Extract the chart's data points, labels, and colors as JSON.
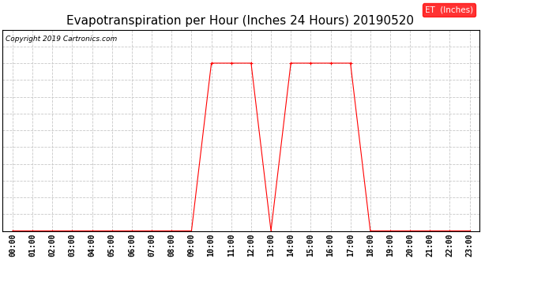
{
  "title": "Evapotranspiration per Hour (Inches 24 Hours) 20190520",
  "copyright": "Copyright 2019 Cartronics.com",
  "legend_label": "ET  (Inches)",
  "legend_bg": "#ff0000",
  "legend_text_color": "#ffffff",
  "line_color": "#ff0000",
  "marker_color": "#ff0000",
  "background_color": "#ffffff",
  "grid_color": "#c8c8c8",
  "hours": [
    "00:00",
    "01:00",
    "02:00",
    "03:00",
    "04:00",
    "05:00",
    "06:00",
    "07:00",
    "08:00",
    "09:00",
    "10:00",
    "11:00",
    "12:00",
    "13:00",
    "14:00",
    "15:00",
    "16:00",
    "17:00",
    "18:00",
    "19:00",
    "20:00",
    "21:00",
    "22:00",
    "23:00"
  ],
  "values": [
    0.0,
    0.0,
    0.0,
    0.0,
    0.0,
    0.0,
    0.0,
    0.0,
    0.0,
    0.0,
    0.01,
    0.01,
    0.01,
    0.0,
    0.01,
    0.01,
    0.01,
    0.01,
    0.0,
    0.0,
    0.0,
    0.0,
    0.0,
    0.0
  ],
  "ylim": [
    0.0,
    0.012
  ],
  "yticks": [
    0.0,
    0.001,
    0.002,
    0.003,
    0.004,
    0.005,
    0.006,
    0.007,
    0.008,
    0.009,
    0.01,
    0.011,
    0.012
  ],
  "title_fontsize": 11,
  "copyright_fontsize": 6.5,
  "tick_fontsize": 7,
  "legend_fontsize": 7.5
}
